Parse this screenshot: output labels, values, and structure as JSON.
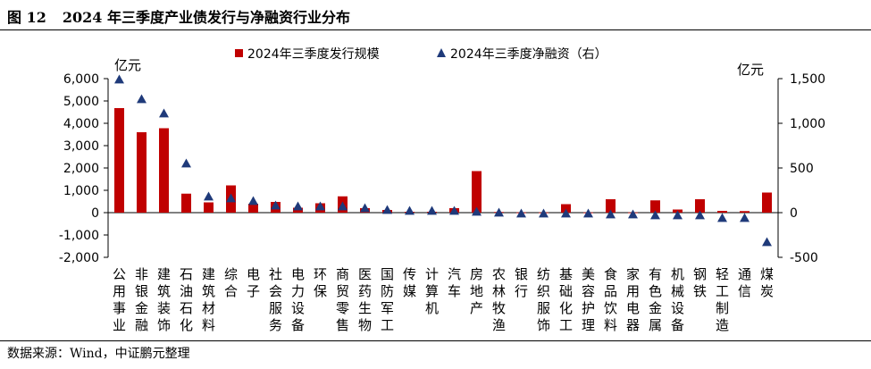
{
  "figure": {
    "number": "图 12",
    "title": "2024 年三季度产业债发行与净融资行业分布",
    "source": "数据来源：Wind，中证鹏元整理"
  },
  "chart_data": {
    "type": "bar+scatter",
    "categories": [
      "公用事业",
      "非银金融",
      "建筑装饰",
      "石油石化",
      "建筑材料",
      "综合",
      "电子",
      "社会服务",
      "电力设备",
      "环保",
      "商贸零售",
      "医药生物",
      "国防军工",
      "传媒",
      "计算机",
      "汽车",
      "房地产",
      "农林牧渔",
      "银行",
      "纺织服饰",
      "基础化工",
      "美容护理",
      "食品饮料",
      "家用电器",
      "有色金属",
      "机械设备",
      "钢铁",
      "轻工制造",
      "通信",
      "煤炭"
    ],
    "series": [
      {
        "name": "2024年三季度发行规模",
        "kind": "bar",
        "axis": "left",
        "color": "#c00000",
        "values": [
          4680,
          3600,
          3780,
          850,
          460,
          1220,
          400,
          480,
          220,
          420,
          730,
          200,
          120,
          40,
          40,
          200,
          1860,
          30,
          10,
          10,
          380,
          10,
          600,
          10,
          550,
          140,
          600,
          80,
          70,
          900
        ]
      },
      {
        "name": "2024年三季度净融资（右）",
        "kind": "marker",
        "axis": "right",
        "color": "#1f3a7a",
        "values": [
          1490,
          1270,
          1110,
          550,
          180,
          160,
          130,
          80,
          70,
          70,
          70,
          50,
          30,
          20,
          20,
          20,
          10,
          0,
          -10,
          -10,
          -10,
          -10,
          -20,
          -20,
          -30,
          -30,
          -30,
          -60,
          -60,
          -330
        ]
      }
    ],
    "y_left": {
      "unit": "亿元",
      "min": -2000,
      "max": 6000,
      "ticks": [
        -2000,
        -1000,
        0,
        1000,
        2000,
        3000,
        4000,
        5000,
        6000
      ],
      "tick_labels": [
        "-2,000",
        "-1,000",
        "0",
        "1,000",
        "2,000",
        "3,000",
        "4,000",
        "5,000",
        "6,000"
      ]
    },
    "y_right": {
      "unit": "亿元",
      "min": -500,
      "max": 1500,
      "ticks": [
        -500,
        0,
        500,
        1000,
        1500
      ],
      "tick_labels": [
        "-500",
        "0",
        "500",
        "1,000",
        "1,500"
      ]
    },
    "legend": {
      "position": "top-center"
    },
    "grid": false
  }
}
